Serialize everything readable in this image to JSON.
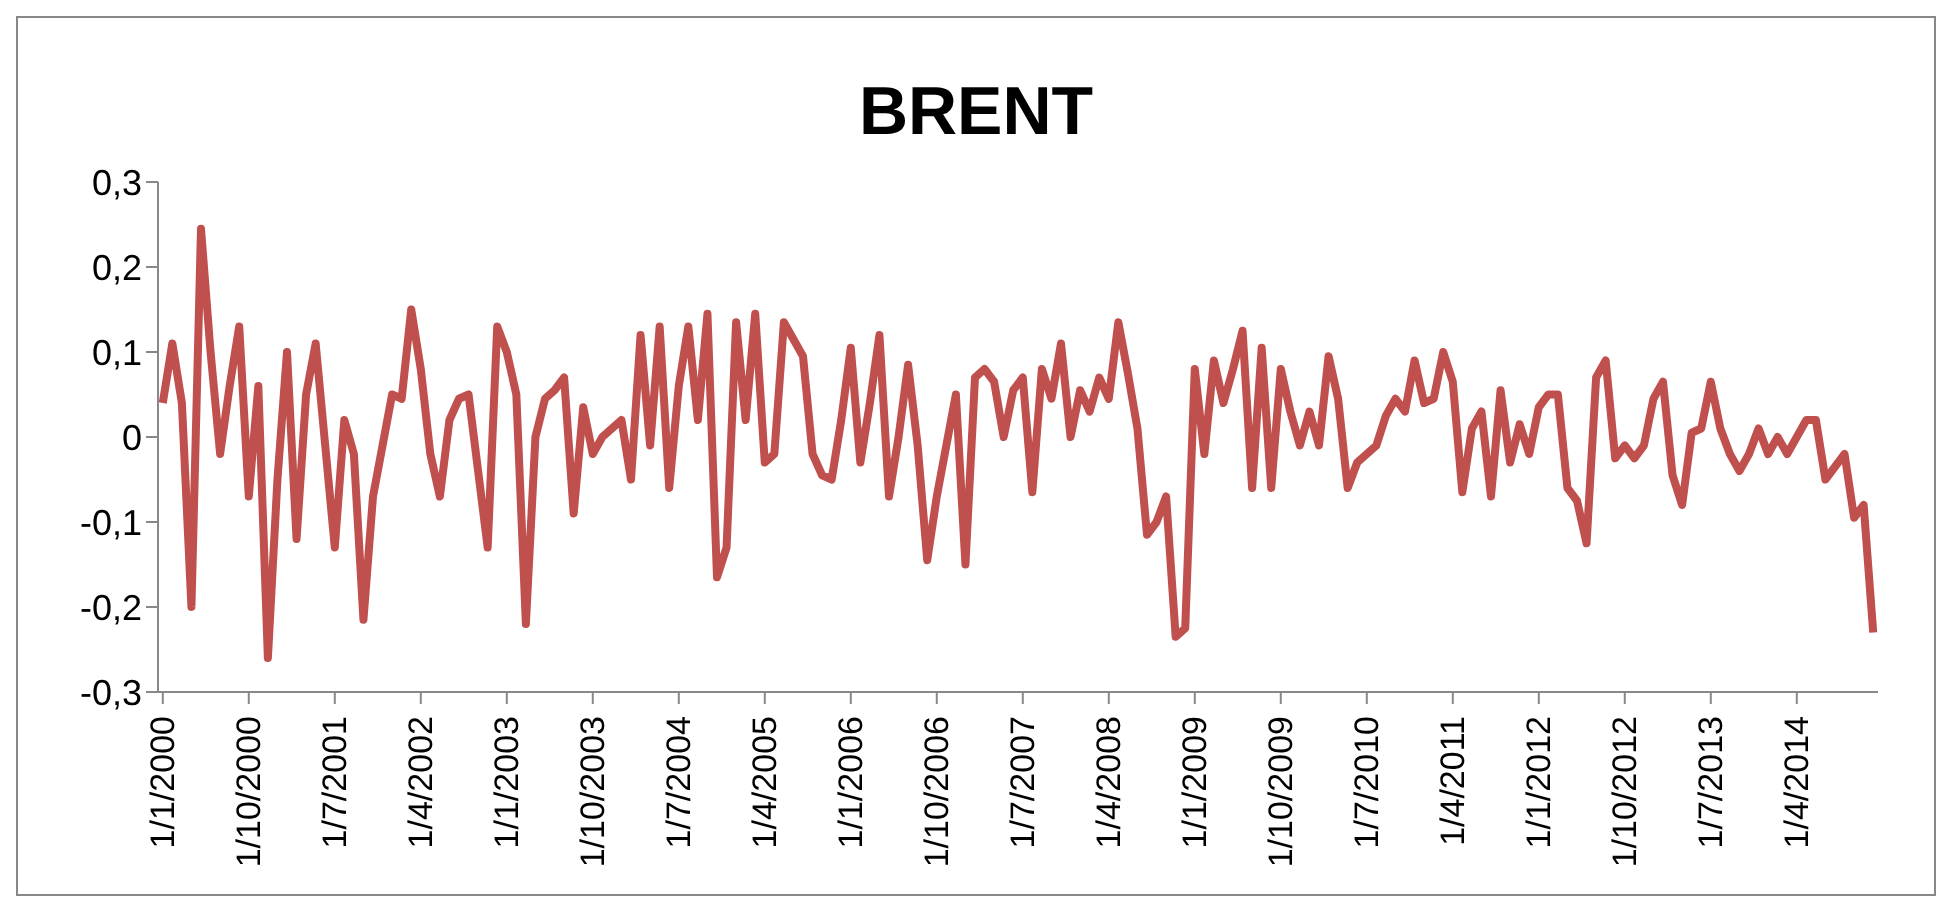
{
  "chart_data": {
    "type": "line",
    "title": "BRENT",
    "categories": [
      "1/1/2000",
      null,
      null,
      null,
      null,
      null,
      null,
      null,
      null,
      "1/10/2000",
      null,
      null,
      null,
      null,
      null,
      null,
      null,
      null,
      "1/7/2001",
      null,
      null,
      null,
      null,
      null,
      null,
      null,
      null,
      "1/4/2002",
      null,
      null,
      null,
      null,
      null,
      null,
      null,
      null,
      "1/1/2003",
      null,
      null,
      null,
      null,
      null,
      null,
      null,
      null,
      "1/10/2003",
      null,
      null,
      null,
      null,
      null,
      null,
      null,
      null,
      "1/7/2004",
      null,
      null,
      null,
      null,
      null,
      null,
      null,
      null,
      "1/4/2005",
      null,
      null,
      null,
      null,
      null,
      null,
      null,
      null,
      "1/1/2006",
      null,
      null,
      null,
      null,
      null,
      null,
      null,
      null,
      "1/10/2006",
      null,
      null,
      null,
      null,
      null,
      null,
      null,
      null,
      "1/7/2007",
      null,
      null,
      null,
      null,
      null,
      null,
      null,
      null,
      "1/4/2008",
      null,
      null,
      null,
      null,
      null,
      null,
      null,
      null,
      "1/1/2009",
      null,
      null,
      null,
      null,
      null,
      null,
      null,
      null,
      "1/10/2009",
      null,
      null,
      null,
      null,
      null,
      null,
      null,
      null,
      "1/7/2010",
      null,
      null,
      null,
      null,
      null,
      null,
      null,
      null,
      "1/4/2011",
      null,
      null,
      null,
      null,
      null,
      null,
      null,
      null,
      "1/1/2012",
      null,
      null,
      null,
      null,
      null,
      null,
      null,
      null,
      "1/10/2012",
      null,
      null,
      null,
      null,
      null,
      null,
      null,
      null,
      "1/7/2013",
      null,
      null,
      null,
      null,
      null,
      null,
      null,
      null,
      "1/4/2014",
      null,
      null,
      null,
      null,
      null,
      null,
      null,
      null
    ],
    "series": [
      {
        "color": "#c0504d",
        "values": [
          0.04,
          0.11,
          0.04,
          -0.2,
          0.245,
          0.1,
          -0.02,
          0.06,
          0.13,
          -0.07,
          0.06,
          -0.26,
          -0.05,
          0.1,
          -0.12,
          0.05,
          0.11,
          -0.01,
          -0.13,
          0.02,
          -0.02,
          -0.215,
          -0.07,
          -0.01,
          0.05,
          0.045,
          0.15,
          0.08,
          -0.02,
          -0.07,
          0.02,
          0.045,
          0.05,
          -0.04,
          -0.13,
          0.13,
          0.1,
          0.05,
          -0.22,
          0.0,
          0.045,
          0.055,
          0.07,
          -0.09,
          0.035,
          -0.02,
          0.0,
          0.01,
          0.02,
          -0.05,
          0.12,
          -0.01,
          0.13,
          -0.06,
          0.06,
          0.13,
          0.02,
          0.145,
          -0.165,
          -0.13,
          0.135,
          0.02,
          0.145,
          -0.03,
          -0.02,
          0.135,
          0.115,
          0.095,
          -0.02,
          -0.045,
          -0.05,
          0.02,
          0.105,
          -0.03,
          0.04,
          0.12,
          -0.07,
          0.0,
          0.085,
          -0.01,
          -0.145,
          -0.07,
          -0.01,
          0.05,
          -0.15,
          0.07,
          0.08,
          0.065,
          0.0,
          0.055,
          0.07,
          -0.065,
          0.08,
          0.045,
          0.11,
          0.0,
          0.055,
          0.03,
          0.07,
          0.045,
          0.135,
          0.075,
          0.01,
          -0.115,
          -0.1,
          -0.07,
          -0.235,
          -0.225,
          0.08,
          -0.02,
          0.09,
          0.04,
          0.08,
          0.125,
          -0.06,
          0.105,
          -0.06,
          0.08,
          0.03,
          -0.01,
          0.03,
          -0.01,
          0.095,
          0.045,
          -0.06,
          -0.03,
          -0.02,
          -0.01,
          0.025,
          0.045,
          0.03,
          0.09,
          0.04,
          0.045,
          0.1,
          0.065,
          -0.065,
          0.01,
          0.03,
          -0.07,
          0.055,
          -0.03,
          0.015,
          -0.02,
          0.035,
          0.05,
          0.05,
          -0.06,
          -0.075,
          -0.125,
          0.07,
          0.09,
          -0.025,
          -0.01,
          -0.025,
          -0.01,
          0.045,
          0.065,
          -0.045,
          -0.08,
          0.005,
          0.01,
          0.065,
          0.01,
          -0.02,
          -0.04,
          -0.02,
          0.01,
          -0.02,
          0.0,
          -0.02,
          0.0,
          0.02,
          0.02,
          -0.05,
          -0.035,
          -0.02,
          -0.095,
          -0.08,
          -0.23
        ]
      }
    ],
    "ylim": [
      -0.3,
      0.3
    ],
    "yticks": [
      {
        "value": -0.3,
        "label": "-0,3"
      },
      {
        "value": -0.2,
        "label": "-0,2"
      },
      {
        "value": -0.1,
        "label": "-0,1"
      },
      {
        "value": 0,
        "label": "0"
      },
      {
        "value": 0.1,
        "label": "0,1"
      },
      {
        "value": 0.2,
        "label": "0,2"
      },
      {
        "value": 0.3,
        "label": "0,3"
      }
    ],
    "grid": false,
    "legend": false,
    "marker": "none",
    "line_style": "solid"
  }
}
